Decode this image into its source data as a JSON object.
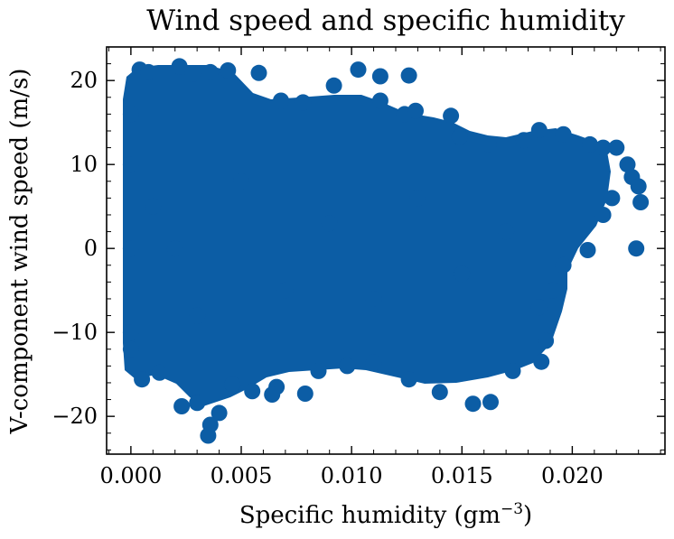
{
  "chart_data": {
    "type": "scatter",
    "title": "Wind speed and specific humidity",
    "xlabel": "Specific humidity (gm",
    "xlabel_sup": "−3",
    "xlabel_end": ")",
    "ylabel": "V-component wind speed (m/s)",
    "xlim": [
      -0.0011,
      0.0242
    ],
    "ylim": [
      -24.5,
      24.0
    ],
    "xticks": [
      0.0,
      0.005,
      0.01,
      0.015,
      0.02
    ],
    "xtick_labels": [
      "0.000",
      "0.005",
      "0.010",
      "0.015",
      "0.020"
    ],
    "yticks": [
      -20,
      -10,
      0,
      10,
      20
    ],
    "ytick_labels": [
      "−20",
      "−10",
      "0",
      "10",
      "20"
    ],
    "grid": false,
    "marker_color": "#0C5DA5",
    "series": [
      {
        "points": [
          [
            0.0,
            0.0
          ],
          [
            0.0,
            10.0
          ],
          [
            0.0,
            -10.0
          ],
          [
            0.0004,
            21.3
          ],
          [
            0.0008,
            21.0
          ],
          [
            0.0022,
            21.7
          ],
          [
            0.0028,
            20.8
          ],
          [
            0.0036,
            21.0
          ],
          [
            0.0044,
            21.2
          ],
          [
            0.0058,
            20.9
          ],
          [
            0.0068,
            17.6
          ],
          [
            0.0078,
            17.4
          ],
          [
            0.0092,
            19.4
          ],
          [
            0.0103,
            21.3
          ],
          [
            0.0113,
            20.5
          ],
          [
            0.0126,
            20.6
          ],
          [
            0.0113,
            17.6
          ],
          [
            0.0124,
            16.0
          ],
          [
            0.0129,
            16.4
          ],
          [
            0.0145,
            15.8
          ],
          [
            0.0149,
            13.3
          ],
          [
            0.0162,
            12.4
          ],
          [
            0.0178,
            12.9
          ],
          [
            0.0185,
            14.1
          ],
          [
            0.0196,
            13.6
          ],
          [
            0.0208,
            12.4
          ],
          [
            0.0214,
            12.0
          ],
          [
            0.022,
            12.0
          ],
          [
            0.0225,
            10.0
          ],
          [
            0.0227,
            8.5
          ],
          [
            0.023,
            7.4
          ],
          [
            0.0231,
            5.5
          ],
          [
            0.0229,
            0.0
          ],
          [
            0.0214,
            4.0
          ],
          [
            0.0218,
            6.0
          ],
          [
            0.0207,
            -0.2
          ],
          [
            0.0196,
            -2.0
          ],
          [
            0.0191,
            -5.0
          ],
          [
            0.0188,
            -11.0
          ],
          [
            0.0186,
            -13.5
          ],
          [
            0.0173,
            -14.6
          ],
          [
            0.0163,
            -18.3
          ],
          [
            0.0155,
            -18.5
          ],
          [
            0.014,
            -17.1
          ],
          [
            0.0126,
            -15.6
          ],
          [
            0.011,
            -13.6
          ],
          [
            0.0098,
            -14.0
          ],
          [
            0.0085,
            -14.6
          ],
          [
            0.0079,
            -17.3
          ],
          [
            0.0066,
            -16.5
          ],
          [
            0.0064,
            -17.4
          ],
          [
            0.0055,
            -17.0
          ],
          [
            0.0046,
            -16.2
          ],
          [
            0.004,
            -19.6
          ],
          [
            0.0036,
            -21.0
          ],
          [
            0.0035,
            -22.3
          ],
          [
            0.003,
            -18.4
          ],
          [
            0.0023,
            -18.8
          ],
          [
            0.0013,
            -14.8
          ],
          [
            0.0005,
            -15.6
          ],
          [
            0.0,
            -12.0
          ],
          [
            0.0,
            16.0
          ],
          [
            0.001,
            5.0
          ],
          [
            0.002,
            0.0
          ],
          [
            0.003,
            -8.0
          ],
          [
            0.005,
            8.0
          ],
          [
            0.007,
            -5.0
          ],
          [
            0.009,
            3.0
          ],
          [
            0.011,
            -6.0
          ],
          [
            0.013,
            6.0
          ],
          [
            0.015,
            -3.0
          ],
          [
            0.017,
            2.0
          ],
          [
            0.0185,
            -7.0
          ]
        ]
      }
    ]
  }
}
